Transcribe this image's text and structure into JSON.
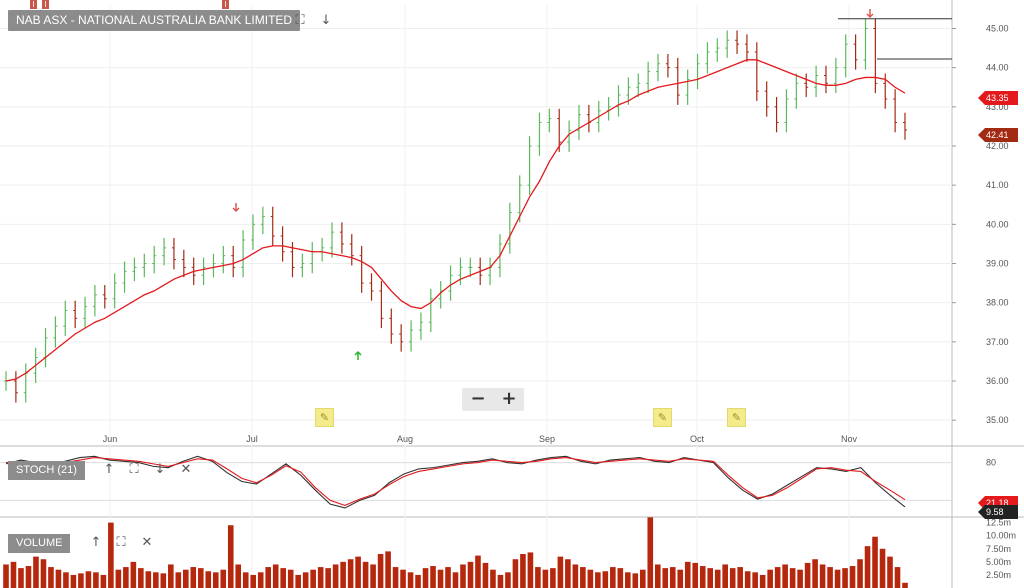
{
  "header": {
    "title": "NAB ASX - NATIONAL AUSTRALIA BANK LIMITED",
    "tab_markers": [
      "I",
      "I",
      "I"
    ]
  },
  "toolbar": {
    "expand_icon": "expand-icon",
    "down_icon": "arrow-down-icon"
  },
  "zoom": {
    "minus": "−",
    "plus": "+"
  },
  "price_tags": [
    {
      "label": "43.35",
      "color": "#e4191c"
    },
    {
      "label": "42.41",
      "color": "#a32a12"
    }
  ],
  "stoch": {
    "label": "STOCH (21)",
    "tags": [
      {
        "label": "21.18",
        "color": "#e4191c"
      },
      {
        "label": "9.58",
        "color": "#222222"
      }
    ]
  },
  "volume": {
    "label": "VOLUME"
  },
  "colors": {
    "up": "#5cb85c",
    "down": "#a32a12",
    "ma": "#e4191c",
    "stoch_k": "#333333",
    "stoch_d": "#e4191c",
    "vol": "#b5280e",
    "axis": "#555555",
    "grid": "#d9d9d9"
  },
  "chart_data": [
    {
      "type": "line",
      "subtype": "ohlc-with-moving-average",
      "title": "NAB ASX - NATIONAL AUSTRALIA BANK LIMITED",
      "x_ticks": [
        "Jun",
        "Jul",
        "Aug",
        "Sep",
        "Oct",
        "Nov"
      ],
      "y_ticks": [
        "35.00",
        "36.00",
        "37.00",
        "38.00",
        "39.00",
        "40.00",
        "41.00",
        "42.00",
        "43.00",
        "44.00",
        "45.00"
      ],
      "ylim": [
        34.8,
        45.6
      ],
      "grid": true,
      "series": [
        {
          "role": "moving-average",
          "values": [
            36.0,
            36.05,
            36.2,
            36.4,
            36.6,
            36.8,
            37.0,
            37.2,
            37.35,
            37.5,
            37.6,
            37.75,
            37.9,
            38.05,
            38.2,
            38.3,
            38.45,
            38.6,
            38.7,
            38.8,
            38.85,
            38.9,
            38.95,
            39.0,
            39.1,
            39.25,
            39.4,
            39.45,
            39.45,
            39.4,
            39.35,
            39.3,
            39.3,
            39.25,
            39.2,
            39.15,
            39.05,
            38.9,
            38.6,
            38.3,
            38.05,
            37.9,
            37.85,
            38.0,
            38.25,
            38.45,
            38.6,
            38.7,
            38.8,
            38.9,
            39.2,
            39.7,
            40.2,
            40.7,
            41.1,
            41.6,
            42.0,
            42.3,
            42.45,
            42.6,
            42.75,
            42.9,
            43.05,
            43.15,
            43.3,
            43.4,
            43.5,
            43.55,
            43.6,
            43.65,
            43.7,
            43.8,
            43.9,
            44.0,
            44.1,
            44.2,
            44.2,
            44.1,
            44.0,
            43.9,
            43.8,
            43.7,
            43.6,
            43.55,
            43.55,
            43.6,
            43.7,
            43.75,
            43.75,
            43.7,
            43.5,
            43.35
          ]
        },
        {
          "role": "price",
          "closes": [
            36.0,
            35.7,
            36.2,
            36.6,
            37.1,
            37.4,
            37.8,
            37.6,
            37.9,
            38.2,
            38.1,
            38.5,
            38.8,
            38.9,
            39.0,
            39.2,
            39.4,
            39.1,
            38.9,
            38.7,
            38.9,
            39.0,
            39.2,
            38.9,
            39.6,
            40.0,
            40.2,
            39.7,
            39.3,
            38.9,
            39.0,
            39.3,
            39.4,
            39.8,
            39.5,
            39.2,
            38.5,
            38.3,
            37.6,
            37.2,
            37.0,
            37.3,
            37.5,
            38.1,
            38.3,
            38.7,
            38.9,
            38.9,
            38.7,
            38.9,
            39.5,
            40.3,
            41.0,
            42.0,
            42.6,
            42.7,
            42.1,
            42.4,
            42.8,
            42.6,
            42.9,
            43.0,
            43.3,
            43.5,
            43.6,
            43.9,
            44.1,
            44.0,
            43.3,
            43.7,
            44.1,
            44.4,
            44.5,
            44.7,
            44.6,
            44.4,
            43.4,
            43.0,
            42.6,
            43.2,
            43.6,
            43.5,
            43.8,
            43.6,
            44.0,
            44.6,
            44.2,
            45.0,
            43.6,
            43.2,
            42.6,
            42.41
          ]
        }
      ]
    },
    {
      "type": "line",
      "title": "STOCH (21)",
      "y_ticks": [
        "80"
      ],
      "ylim": [
        0,
        100
      ],
      "series": [
        {
          "name": "21.18",
          "values": [
            80,
            82,
            80,
            78,
            80,
            84,
            88,
            86,
            84,
            82,
            78,
            74,
            80,
            86,
            84,
            70,
            55,
            48,
            60,
            75,
            65,
            40,
            20,
            12,
            22,
            30,
            45,
            58,
            66,
            70,
            74,
            78,
            80,
            84,
            82,
            80,
            82,
            86,
            88,
            84,
            80,
            82,
            84,
            86,
            84,
            82,
            86,
            84,
            82,
            60,
            40,
            24,
            28,
            40,
            55,
            70,
            72,
            68,
            66,
            50,
            36,
            21.18
          ]
        },
        {
          "name": "9.58",
          "values": [
            78,
            84,
            80,
            76,
            82,
            88,
            90,
            84,
            82,
            80,
            74,
            72,
            82,
            90,
            82,
            64,
            50,
            46,
            62,
            78,
            60,
            36,
            14,
            8,
            20,
            28,
            48,
            62,
            70,
            72,
            76,
            80,
            82,
            86,
            80,
            78,
            84,
            88,
            90,
            82,
            78,
            84,
            86,
            88,
            82,
            80,
            88,
            84,
            80,
            56,
            36,
            22,
            30,
            44,
            58,
            72,
            70,
            66,
            72,
            48,
            28,
            9.58
          ]
        }
      ]
    },
    {
      "type": "bar",
      "title": "VOLUME",
      "y_ticks": [
        "2.50m",
        "5.00m",
        "7.50m",
        "10.00m",
        "12.5m"
      ],
      "ylim": [
        0,
        13
      ],
      "values": [
        4.5,
        5.0,
        3.8,
        4.2,
        6.0,
        5.5,
        4.0,
        3.5,
        3.0,
        2.5,
        2.8,
        3.2,
        3.0,
        2.5,
        12.5,
        3.5,
        4.0,
        5.0,
        3.8,
        3.2,
        3.0,
        2.8,
        4.5,
        3.0,
        3.5,
        4.0,
        3.8,
        3.2,
        3.0,
        3.5,
        12.0,
        4.5,
        3.0,
        2.5,
        3.0,
        4.0,
        4.5,
        3.8,
        3.5,
        2.5,
        3.0,
        3.5,
        4.0,
        3.8,
        4.5,
        5.0,
        5.5,
        6.0,
        5.0,
        4.5,
        6.5,
        7.0,
        4.0,
        3.5,
        3.0,
        2.5,
        3.8,
        4.2,
        3.5,
        4.0,
        3.0,
        4.5,
        5.0,
        6.2,
        4.8,
        3.5,
        2.5,
        3.0,
        5.5,
        6.5,
        6.8,
        4.0,
        3.5,
        3.8,
        6.0,
        5.5,
        4.5,
        4.0,
        3.5,
        3.0,
        3.2,
        4.0,
        3.8,
        3.0,
        2.8,
        3.5,
        13.5,
        4.5,
        3.8,
        4.0,
        3.5,
        5.0,
        4.8,
        4.2,
        3.8,
        3.5,
        4.5,
        3.8,
        4.0,
        3.2,
        3.0,
        2.5,
        3.5,
        4.0,
        4.5,
        3.8,
        3.5,
        4.8,
        5.5,
        4.5,
        4.0,
        3.5,
        3.8,
        4.2,
        5.5,
        8.0,
        9.8,
        7.5,
        6.0,
        4.0,
        1.0
      ]
    }
  ]
}
